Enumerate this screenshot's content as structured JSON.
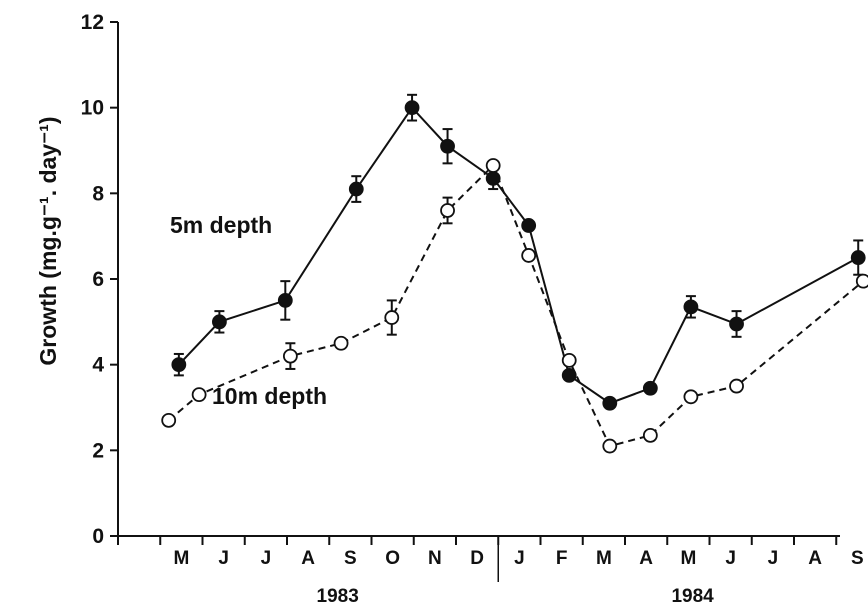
{
  "chart_data": {
    "type": "line",
    "title": "",
    "ylabel": "Growth (mg.g⁻¹. day⁻¹)",
    "xlabel": "",
    "ylim": [
      0,
      12
    ],
    "yticks": [
      0,
      2,
      4,
      6,
      8,
      10,
      12
    ],
    "x_tick_labels": [
      "M",
      "J",
      "J",
      "A",
      "S",
      "O",
      "N",
      "D",
      "J",
      "F",
      "M",
      "A",
      "M",
      "J",
      "J",
      "A",
      "S"
    ],
    "year_labels": [
      "1983",
      "1984"
    ],
    "grid": false,
    "annotations": [
      "5m depth",
      "10m depth"
    ],
    "series": [
      {
        "style": "solid, filled circles",
        "points": [
          {
            "x": 1983.37,
            "y": 4.0,
            "err": 0.25
          },
          {
            "x": 1983.45,
            "y": 5.0,
            "err": 0.25
          },
          {
            "x": 1983.58,
            "y": 5.5,
            "err": 0.45
          },
          {
            "x": 1983.72,
            "y": 8.1,
            "err": 0.3
          },
          {
            "x": 1983.83,
            "y": 10.0,
            "err": 0.3
          },
          {
            "x": 1983.9,
            "y": 9.1,
            "err": 0.4
          },
          {
            "x": 1983.99,
            "y": 8.35,
            "err": 0.25
          },
          {
            "x": 1984.06,
            "y": 7.25
          },
          {
            "x": 1984.14,
            "y": 3.75
          },
          {
            "x": 1984.22,
            "y": 3.1
          },
          {
            "x": 1984.3,
            "y": 3.45
          },
          {
            "x": 1984.38,
            "y": 5.35,
            "err": 0.25
          },
          {
            "x": 1984.47,
            "y": 4.95,
            "err": 0.3
          },
          {
            "x": 1984.71,
            "y": 6.5,
            "err": 0.4
          }
        ]
      },
      {
        "style": "dashed, open circles",
        "points": [
          {
            "x": 1983.35,
            "y": 2.7
          },
          {
            "x": 1983.41,
            "y": 3.3
          },
          {
            "x": 1983.59,
            "y": 4.2,
            "err": 0.3
          },
          {
            "x": 1983.69,
            "y": 4.5
          },
          {
            "x": 1983.79,
            "y": 5.1,
            "err": 0.4
          },
          {
            "x": 1983.9,
            "y": 7.6,
            "err": 0.3
          },
          {
            "x": 1983.99,
            "y": 8.65
          },
          {
            "x": 1984.06,
            "y": 6.55
          },
          {
            "x": 1984.14,
            "y": 4.1
          },
          {
            "x": 1984.22,
            "y": 2.1
          },
          {
            "x": 1984.3,
            "y": 2.35
          },
          {
            "x": 1984.38,
            "y": 3.25
          },
          {
            "x": 1984.47,
            "y": 3.5
          },
          {
            "x": 1984.72,
            "y": 5.95
          }
        ]
      }
    ]
  }
}
